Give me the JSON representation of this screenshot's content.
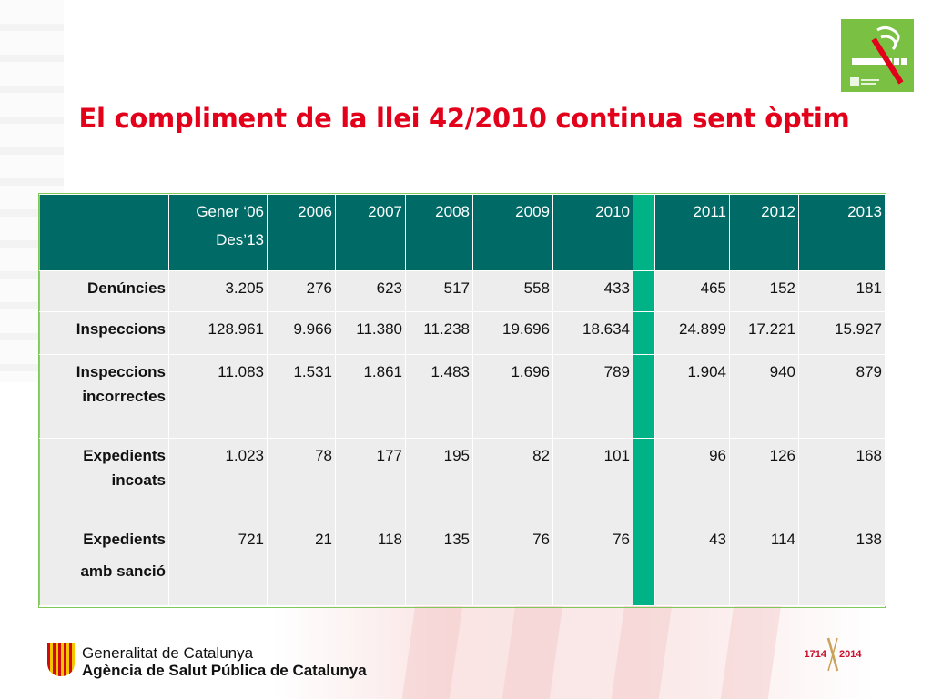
{
  "title": "El compliment de la llei 42/2010 continua sent òptim",
  "table": {
    "header": [
      "Gener ‘06",
      "Des’13",
      "2006",
      "2007",
      "2008",
      "2009",
      "2010",
      "2011",
      "2012",
      "2013"
    ],
    "rows": [
      {
        "label": [
          "Denúncies"
        ],
        "values": [
          "3.205",
          "276",
          "623",
          "517",
          "558",
          "433",
          "465",
          "152",
          "181"
        ]
      },
      {
        "label": [
          "Inspeccions"
        ],
        "values": [
          "128.961",
          "9.966",
          "11.380",
          "11.238",
          "19.696",
          "18.634",
          "24.899",
          "17.221",
          "15.927"
        ]
      },
      {
        "label": [
          "Inspeccions",
          "incorrectes"
        ],
        "values": [
          "11.083",
          "1.531",
          "1.861",
          "1.483",
          "1.696",
          "789",
          "1.904",
          "940",
          "879"
        ]
      },
      {
        "label": [
          "Expedients",
          "incoats"
        ],
        "values": [
          "1.023",
          "78",
          "177",
          "195",
          "82",
          "101",
          "96",
          "126",
          "168"
        ]
      },
      {
        "label": [
          "Expedients",
          "amb sanció"
        ],
        "values": [
          "721",
          "21",
          "118",
          "135",
          "76",
          "76",
          "43",
          "114",
          "138"
        ]
      }
    ]
  },
  "footer": {
    "org_line1": "Generalitat de Catalunya",
    "org_line2": "Agència de Salut Pública de Catalunya",
    "anniversary_left": "1714",
    "anniversary_right": "2014"
  },
  "colors": {
    "title": "#e2001a",
    "header_bg": "#006a66",
    "gap_column": "#00b386",
    "cell_bg": "#ededed",
    "nosmoke_bg": "#7ac143"
  }
}
